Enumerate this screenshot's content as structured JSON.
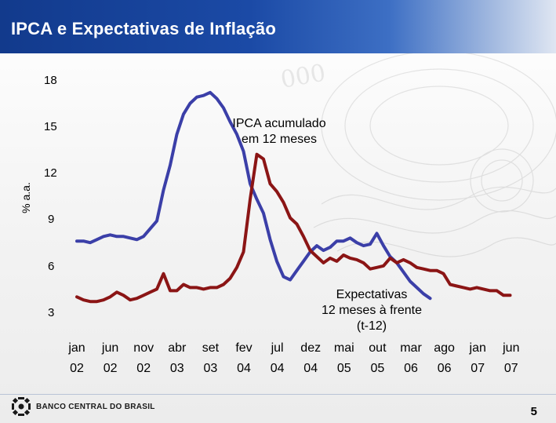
{
  "slide": {
    "title": "IPCA e Expectativas de Inflação",
    "page_number": "5",
    "logo_text": "BANCO CENTRAL DO BRASIL",
    "colors": {
      "title_bar": "#1b4aa6",
      "ipca": "#3b3fa8",
      "expectations": "#8b1515"
    }
  },
  "chart_data": {
    "type": "line",
    "ylabel": "% a.a.",
    "ylim": [
      3,
      18
    ],
    "yticks": [
      "18",
      "15",
      "12",
      "9",
      "6",
      "3"
    ],
    "x_labels": [
      {
        "month": "jan",
        "year": "02"
      },
      {
        "month": "jun",
        "year": "02"
      },
      {
        "month": "nov",
        "year": "02"
      },
      {
        "month": "abr",
        "year": "03"
      },
      {
        "month": "set",
        "year": "03"
      },
      {
        "month": "fev",
        "year": "04"
      },
      {
        "month": "jul",
        "year": "04"
      },
      {
        "month": "dez",
        "year": "04"
      },
      {
        "month": "mai",
        "year": "05"
      },
      {
        "month": "out",
        "year": "05"
      },
      {
        "month": "mar",
        "year": "06"
      },
      {
        "month": "ago",
        "year": "06"
      },
      {
        "month": "jan",
        "year": "07"
      },
      {
        "month": "jun",
        "year": "07"
      }
    ],
    "annotations": {
      "ipca": [
        "IPCA acumulado",
        "em 12 meses"
      ],
      "expectations": [
        "Expectativas",
        "12 meses à frente",
        "(t-12)"
      ]
    },
    "series": [
      {
        "name": "IPCA acumulado em 12 meses",
        "x": [
          0,
          1,
          2,
          3,
          4,
          5,
          6,
          7,
          8,
          9,
          10,
          11,
          12,
          13,
          14,
          15,
          16,
          17,
          18,
          19,
          20,
          21,
          22,
          23,
          24,
          25,
          26,
          27,
          28,
          29,
          30,
          31,
          32,
          33,
          34,
          35,
          36,
          37,
          38,
          39,
          40,
          41,
          42,
          43,
          44,
          45,
          46,
          47,
          48,
          49,
          50,
          51,
          52,
          53
        ],
        "values": [
          7.6,
          7.6,
          7.5,
          7.7,
          7.9,
          8.0,
          7.9,
          7.9,
          7.8,
          7.7,
          7.9,
          8.4,
          8.9,
          10.9,
          12.5,
          14.5,
          15.8,
          16.5,
          16.9,
          17.0,
          17.2,
          16.8,
          16.2,
          15.3,
          14.5,
          13.4,
          11.3,
          10.3,
          9.4,
          7.7,
          6.3,
          5.3,
          5.1,
          5.7,
          6.3,
          6.9,
          7.3,
          7.0,
          7.2,
          7.6,
          7.6,
          7.8,
          7.5,
          7.3,
          7.4,
          8.1,
          7.3,
          6.6,
          6.2,
          5.6,
          5.0,
          4.6,
          4.2,
          3.9
        ]
      },
      {
        "name": "Expectativas 12 meses à frente (t-12)",
        "x": [
          0,
          1,
          2,
          3,
          4,
          5,
          6,
          7,
          8,
          9,
          10,
          11,
          12,
          13,
          14,
          15,
          16,
          17,
          18,
          19,
          20,
          21,
          22,
          23,
          24,
          25,
          26,
          27,
          28,
          29,
          30,
          31,
          32,
          33,
          34,
          35,
          36,
          37,
          38,
          39,
          40,
          41,
          42,
          43,
          44,
          45,
          46,
          47,
          48,
          49,
          50,
          51,
          52,
          53,
          54,
          55,
          56,
          57,
          58,
          59,
          60,
          61,
          62,
          63,
          64,
          65
        ],
        "values": [
          4.0,
          3.8,
          3.7,
          3.7,
          3.8,
          4.0,
          4.3,
          4.1,
          3.8,
          3.9,
          4.1,
          4.3,
          4.5,
          5.5,
          4.4,
          4.4,
          4.8,
          4.6,
          4.6,
          4.5,
          4.6,
          4.6,
          4.8,
          5.2,
          5.9,
          6.9,
          10.3,
          13.2,
          12.9,
          11.3,
          10.8,
          10.1,
          9.1,
          8.7,
          7.9,
          7.0,
          6.6,
          6.2,
          6.5,
          6.3,
          6.7,
          6.5,
          6.4,
          6.2,
          5.8,
          5.9,
          6.0,
          6.5,
          6.2,
          6.4,
          6.2,
          5.9,
          5.8,
          5.7,
          5.7,
          5.5,
          4.8,
          4.7,
          4.6,
          4.5,
          4.6,
          4.5,
          4.4,
          4.4,
          4.1,
          4.1
        ]
      }
    ]
  }
}
